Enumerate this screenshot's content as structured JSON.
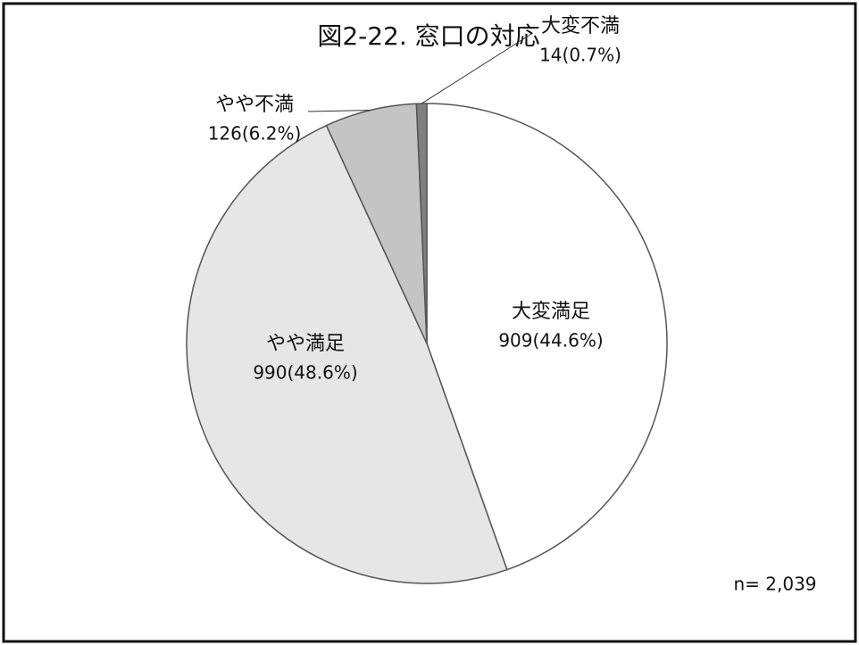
{
  "chart_data": {
    "type": "pie",
    "title": "図2-22. 窓口の対応",
    "categories": [
      "大変満足",
      "やや満足",
      "やや不満",
      "大変不満"
    ],
    "values": [
      909,
      990,
      126,
      14
    ],
    "value_labels": [
      "909(44.6%)",
      "990(48.6%)",
      "126(6.2%)",
      "14(0.7%)"
    ],
    "colors": [
      "#ffffff",
      "#e6e6e6",
      "#c4c4c4",
      "#808080"
    ],
    "annotation": "n= 2,039"
  }
}
